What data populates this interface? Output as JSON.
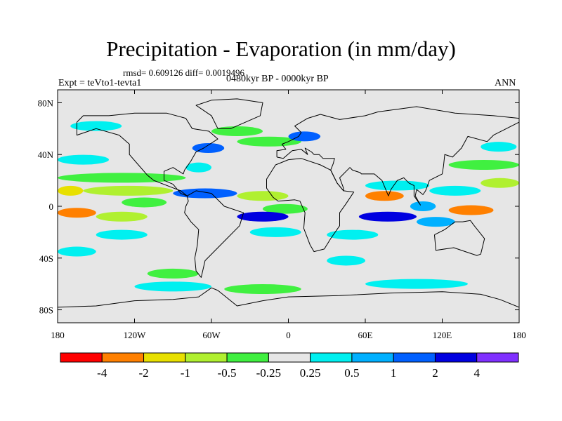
{
  "chart_data": {
    "type": "map",
    "title": "Precipitation - Evaporation (in mm/day)",
    "stats_text": "rmsd= 0.609126 diff= 0.0019496",
    "experiment_label": "Expt = teVto1-tevta1",
    "period_label": "0480kyr BP - 0000kyr BP",
    "season_label": "ANN",
    "lon_range": [
      -180,
      180
    ],
    "lat_range": [
      -90,
      90
    ],
    "x_ticks": [
      {
        "lon": -180,
        "label": "180"
      },
      {
        "lon": -120,
        "label": "120W"
      },
      {
        "lon": -60,
        "label": "60W"
      },
      {
        "lon": 0,
        "label": "0"
      },
      {
        "lon": 60,
        "label": "60E"
      },
      {
        "lon": 120,
        "label": "120E"
      },
      {
        "lon": 180,
        "label": "180"
      }
    ],
    "y_ticks": [
      {
        "lat": 80,
        "label": "80N"
      },
      {
        "lat": 40,
        "label": "40N"
      },
      {
        "lat": 0,
        "label": "0"
      },
      {
        "lat": -40,
        "label": "40S"
      },
      {
        "lat": -80,
        "label": "80S"
      }
    ],
    "colorbar": {
      "boundaries": [
        "-4",
        "-2",
        "-1",
        "-0.5",
        "-0.25",
        "0.25",
        "0.5",
        "1",
        "2",
        "4"
      ],
      "colors": [
        "#ff0000",
        "#ff8000",
        "#e8e000",
        "#b0f030",
        "#40f040",
        "#e6e6e6",
        "#00f0f0",
        "#00b0ff",
        "#0060ff",
        "#0000e0",
        "#8030ff"
      ]
    },
    "anomaly_bands": [
      {
        "lat": 62,
        "lon0": -170,
        "lon1": -130,
        "class": 6
      },
      {
        "lat": 58,
        "lon0": -60,
        "lon1": -20,
        "class": 4
      },
      {
        "lat": 50,
        "lon0": -40,
        "lon1": 10,
        "class": 4
      },
      {
        "lat": 54,
        "lon0": 0,
        "lon1": 25,
        "class": 8
      },
      {
        "lat": 45,
        "lon0": -75,
        "lon1": -50,
        "class": 8
      },
      {
        "lat": 46,
        "lon0": 150,
        "lon1": 178,
        "class": 6
      },
      {
        "lat": 36,
        "lon0": -180,
        "lon1": -140,
        "class": 6
      },
      {
        "lat": 32,
        "lon0": 125,
        "lon1": 180,
        "class": 4
      },
      {
        "lat": 30,
        "lon0": -80,
        "lon1": -60,
        "class": 6
      },
      {
        "lat": 22,
        "lon0": -180,
        "lon1": -80,
        "class": 4
      },
      {
        "lat": 16,
        "lon0": 60,
        "lon1": 110,
        "class": 6
      },
      {
        "lat": 12,
        "lon0": -180,
        "lon1": -160,
        "class": 2
      },
      {
        "lat": 12,
        "lon0": -160,
        "lon1": -90,
        "class": 3
      },
      {
        "lat": 10,
        "lon0": -90,
        "lon1": -40,
        "class": 8
      },
      {
        "lat": 8,
        "lon0": -40,
        "lon1": 0,
        "class": 3
      },
      {
        "lat": 8,
        "lon0": 60,
        "lon1": 90,
        "class": 1
      },
      {
        "lat": 12,
        "lon0": 110,
        "lon1": 150,
        "class": 6
      },
      {
        "lat": 18,
        "lon0": 150,
        "lon1": 180,
        "class": 3
      },
      {
        "lat": 3,
        "lon0": -130,
        "lon1": -95,
        "class": 4
      },
      {
        "lat": -2,
        "lon0": -20,
        "lon1": 15,
        "class": 4
      },
      {
        "lat": 0,
        "lon0": 95,
        "lon1": 115,
        "class": 7
      },
      {
        "lat": -3,
        "lon0": 125,
        "lon1": 160,
        "class": 1
      },
      {
        "lat": -5,
        "lon0": -180,
        "lon1": -150,
        "class": 1
      },
      {
        "lat": -8,
        "lon0": -150,
        "lon1": -110,
        "class": 3
      },
      {
        "lat": -8,
        "lon0": -40,
        "lon1": 0,
        "class": 9
      },
      {
        "lat": -8,
        "lon0": 55,
        "lon1": 100,
        "class": 9
      },
      {
        "lat": -12,
        "lon0": 100,
        "lon1": 130,
        "class": 7
      },
      {
        "lat": -20,
        "lon0": -30,
        "lon1": 10,
        "class": 6
      },
      {
        "lat": -22,
        "lon0": 30,
        "lon1": 70,
        "class": 6
      },
      {
        "lat": -22,
        "lon0": -150,
        "lon1": -110,
        "class": 6
      },
      {
        "lat": -35,
        "lon0": -180,
        "lon1": -150,
        "class": 6
      },
      {
        "lat": -42,
        "lon0": 30,
        "lon1": 60,
        "class": 6
      },
      {
        "lat": -52,
        "lon0": -110,
        "lon1": -70,
        "class": 4
      },
      {
        "lat": -62,
        "lon0": -120,
        "lon1": -60,
        "class": 6
      },
      {
        "lat": -64,
        "lon0": -50,
        "lon1": 10,
        "class": 4
      },
      {
        "lat": -60,
        "lon0": 60,
        "lon1": 140,
        "class": 6
      }
    ],
    "coastlines": [
      {
        "name": "north-america",
        "points": [
          [
            -165,
            65
          ],
          [
            -160,
            70
          ],
          [
            -140,
            70
          ],
          [
            -120,
            72
          ],
          [
            -95,
            72
          ],
          [
            -80,
            68
          ],
          [
            -75,
            60
          ],
          [
            -62,
            58
          ],
          [
            -55,
            52
          ],
          [
            -66,
            45
          ],
          [
            -72,
            42
          ],
          [
            -76,
            35
          ],
          [
            -81,
            28
          ],
          [
            -82,
            25
          ],
          [
            -90,
            30
          ],
          [
            -97,
            27
          ],
          [
            -97,
            20
          ],
          [
            -90,
            17
          ],
          [
            -84,
            10
          ],
          [
            -79,
            8
          ],
          [
            -84,
            12
          ],
          [
            -92,
            15
          ],
          [
            -105,
            20
          ],
          [
            -110,
            24
          ],
          [
            -117,
            32
          ],
          [
            -124,
            40
          ],
          [
            -124,
            48
          ],
          [
            -132,
            55
          ],
          [
            -150,
            60
          ],
          [
            -165,
            55
          ],
          [
            -165,
            65
          ]
        ]
      },
      {
        "name": "greenland",
        "points": [
          [
            -55,
            60
          ],
          [
            -45,
            60
          ],
          [
            -22,
            70
          ],
          [
            -20,
            80
          ],
          [
            -40,
            83
          ],
          [
            -60,
            82
          ],
          [
            -72,
            78
          ],
          [
            -60,
            70
          ],
          [
            -55,
            60
          ]
        ]
      },
      {
        "name": "south-america",
        "points": [
          [
            -79,
            8
          ],
          [
            -72,
            12
          ],
          [
            -60,
            10
          ],
          [
            -50,
            0
          ],
          [
            -35,
            -5
          ],
          [
            -38,
            -15
          ],
          [
            -48,
            -25
          ],
          [
            -58,
            -35
          ],
          [
            -65,
            -42
          ],
          [
            -68,
            -55
          ],
          [
            -72,
            -50
          ],
          [
            -73,
            -40
          ],
          [
            -71,
            -30
          ],
          [
            -70,
            -18
          ],
          [
            -76,
            -12
          ],
          [
            -81,
            -5
          ],
          [
            -80,
            0
          ],
          [
            -78,
            4
          ],
          [
            -79,
            8
          ]
        ]
      },
      {
        "name": "africa",
        "points": [
          [
            -17,
            21
          ],
          [
            -17,
            14
          ],
          [
            -12,
            7
          ],
          [
            -8,
            4
          ],
          [
            5,
            5
          ],
          [
            9,
            4
          ],
          [
            13,
            -5
          ],
          [
            12,
            -17
          ],
          [
            17,
            -30
          ],
          [
            20,
            -35
          ],
          [
            28,
            -33
          ],
          [
            33,
            -25
          ],
          [
            40,
            -15
          ],
          [
            40,
            -5
          ],
          [
            45,
            2
          ],
          [
            51,
            11
          ],
          [
            43,
            12
          ],
          [
            38,
            18
          ],
          [
            33,
            28
          ],
          [
            25,
            32
          ],
          [
            10,
            37
          ],
          [
            0,
            36
          ],
          [
            -10,
            32
          ],
          [
            -17,
            21
          ]
        ]
      },
      {
        "name": "europe-asia",
        "points": [
          [
            -9,
            38
          ],
          [
            -9,
            43
          ],
          [
            -2,
            44
          ],
          [
            -5,
            48
          ],
          [
            0,
            50
          ],
          [
            8,
            54
          ],
          [
            10,
            57
          ],
          [
            5,
            62
          ],
          [
            15,
            68
          ],
          [
            25,
            71
          ],
          [
            40,
            67
          ],
          [
            60,
            70
          ],
          [
            70,
            73
          ],
          [
            100,
            77
          ],
          [
            130,
            72
          ],
          [
            160,
            70
          ],
          [
            180,
            68
          ],
          [
            180,
            65
          ],
          [
            170,
            60
          ],
          [
            160,
            55
          ],
          [
            155,
            50
          ],
          [
            140,
            54
          ],
          [
            135,
            45
          ],
          [
            128,
            38
          ],
          [
            122,
            40
          ],
          [
            121,
            31
          ],
          [
            120,
            25
          ],
          [
            110,
            20
          ],
          [
            107,
            12
          ],
          [
            105,
            9
          ],
          [
            100,
            13
          ],
          [
            99,
            8
          ],
          [
            103,
            1
          ],
          [
            98,
            8
          ],
          [
            98,
            16
          ],
          [
            94,
            18
          ],
          [
            90,
            22
          ],
          [
            85,
            20
          ],
          [
            80,
            13
          ],
          [
            78,
            8
          ],
          [
            73,
            20
          ],
          [
            67,
            25
          ],
          [
            57,
            25
          ],
          [
            56,
            26
          ],
          [
            50,
            28
          ],
          [
            48,
            30
          ],
          [
            40,
            22
          ],
          [
            43,
            14
          ],
          [
            43,
            12
          ],
          [
            38,
            18
          ],
          [
            33,
            28
          ],
          [
            35,
            33
          ],
          [
            36,
            37
          ],
          [
            27,
            37
          ],
          [
            24,
            40
          ],
          [
            20,
            40
          ],
          [
            18,
            42
          ],
          [
            13,
            45
          ],
          [
            15,
            40
          ],
          [
            10,
            44
          ],
          [
            3,
            43
          ],
          [
            -4,
            37
          ],
          [
            -9,
            38
          ]
        ]
      },
      {
        "name": "australia",
        "points": [
          [
            114,
            -22
          ],
          [
            115,
            -34
          ],
          [
            129,
            -32
          ],
          [
            138,
            -35
          ],
          [
            147,
            -38
          ],
          [
            150,
            -37
          ],
          [
            153,
            -25
          ],
          [
            145,
            -15
          ],
          [
            142,
            -11
          ],
          [
            136,
            -12
          ],
          [
            130,
            -12
          ],
          [
            122,
            -18
          ],
          [
            114,
            -22
          ]
        ]
      },
      {
        "name": "antarctica",
        "points": [
          [
            -180,
            -78
          ],
          [
            -150,
            -77
          ],
          [
            -120,
            -73
          ],
          [
            -90,
            -72
          ],
          [
            -70,
            -70
          ],
          [
            -60,
            -63
          ],
          [
            -55,
            -65
          ],
          [
            -40,
            -77
          ],
          [
            -20,
            -73
          ],
          [
            0,
            -70
          ],
          [
            40,
            -69
          ],
          [
            80,
            -67
          ],
          [
            120,
            -66
          ],
          [
            150,
            -68
          ],
          [
            165,
            -72
          ],
          [
            180,
            -78
          ]
        ]
      }
    ]
  }
}
